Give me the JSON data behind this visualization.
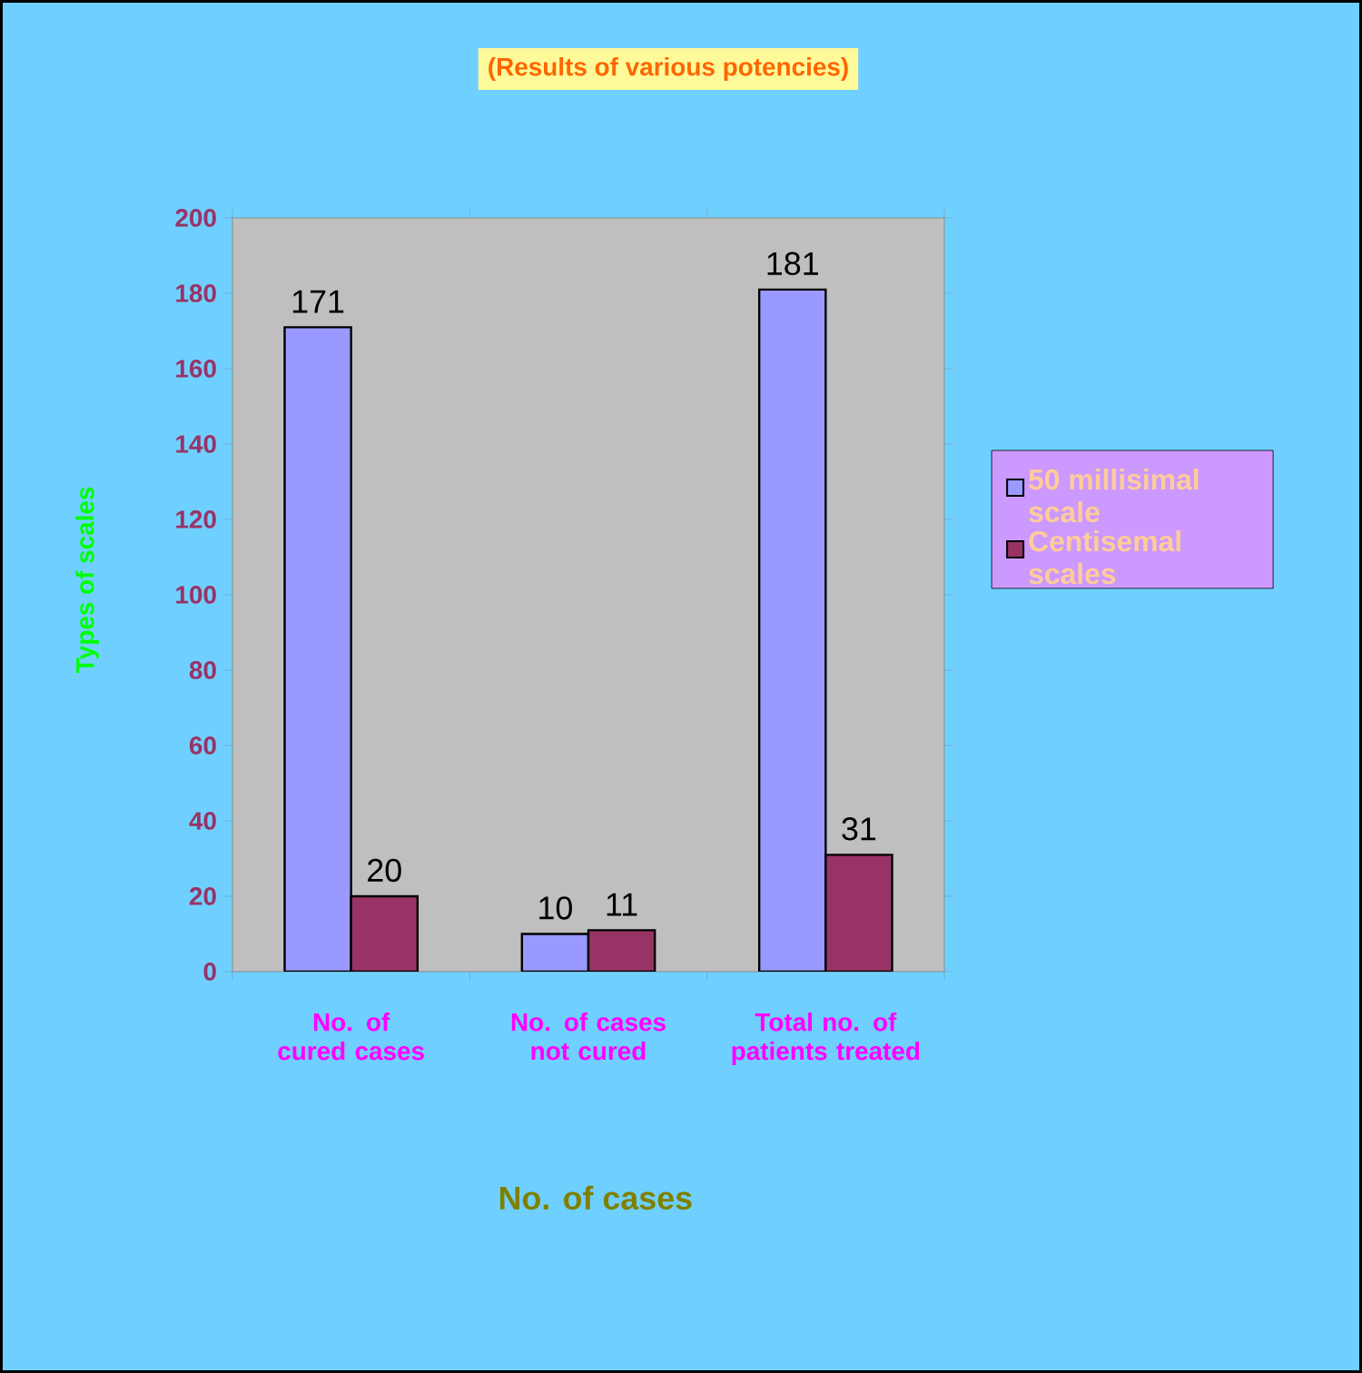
{
  "chart_data": {
    "type": "bar",
    "title": "(Results of various potencies)",
    "xlabel": "No. of cases",
    "ylabel": "Types of scales",
    "categories": [
      "No. of cured cases",
      "No. of cases not cured",
      "Total no. of patients treated"
    ],
    "series": [
      {
        "name": "50 millisimal scale",
        "color": "#9999ff",
        "values": [
          171,
          10,
          181
        ]
      },
      {
        "name": "Centisemal scales",
        "color": "#993366",
        "values": [
          20,
          11,
          31
        ]
      }
    ],
    "ylim": [
      0,
      200
    ],
    "yticks": [
      0,
      20,
      40,
      60,
      80,
      100,
      120,
      140,
      160,
      180,
      200
    ],
    "data_labels": true,
    "legend": "right"
  }
}
